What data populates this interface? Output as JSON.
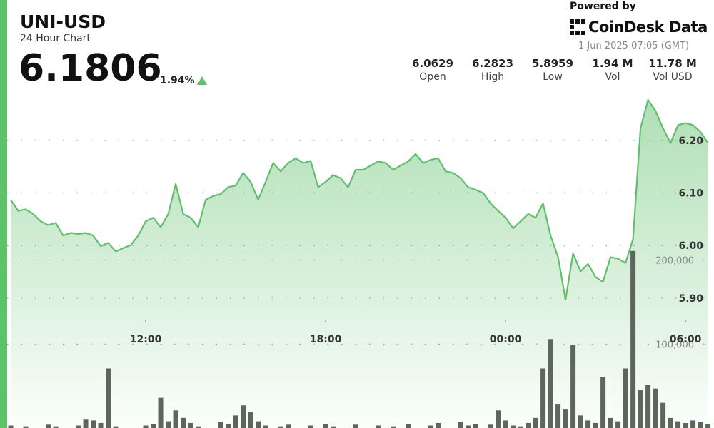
{
  "header": {
    "symbol": "UNI-USD",
    "subtitle": "24 Hour Chart",
    "price": "6.1806",
    "change": "1.94%",
    "powered_by": "Powered by",
    "brand": "CoinDesk Data",
    "timestamp": "1 Jun 2025 07:05 (GMT)",
    "stats": [
      {
        "value": "6.0629",
        "label": "Open"
      },
      {
        "value": "6.2823",
        "label": "High"
      },
      {
        "value": "5.8959",
        "label": "Low"
      },
      {
        "value": "1.94 M",
        "label": "Vol"
      },
      {
        "value": "11.78 M",
        "label": "Vol USD"
      }
    ]
  },
  "chart_data": {
    "type": "line",
    "x": [
      7.5,
      7.75,
      8,
      8.25,
      8.5,
      8.75,
      9,
      9.25,
      9.5,
      9.75,
      10,
      10.25,
      10.5,
      10.75,
      11,
      11.25,
      11.5,
      11.75,
      12,
      12.25,
      12.5,
      12.75,
      13,
      13.25,
      13.5,
      13.75,
      14,
      14.25,
      14.5,
      14.75,
      15,
      15.25,
      15.5,
      15.75,
      16,
      16.25,
      16.5,
      16.75,
      17,
      17.25,
      17.5,
      17.75,
      18,
      18.25,
      18.5,
      18.75,
      19,
      19.25,
      19.5,
      19.75,
      20,
      20.25,
      20.5,
      20.75,
      21,
      21.25,
      21.5,
      21.75,
      22,
      22.25,
      22.5,
      22.75,
      23,
      23.25,
      23.5,
      23.75,
      24,
      24.25,
      24.5,
      24.75,
      25,
      25.25,
      25.5,
      25.75,
      26,
      26.25,
      26.5,
      26.75,
      27,
      27.25,
      27.5,
      27.75,
      28,
      28.25,
      28.5,
      28.75,
      29,
      29.25,
      29.5,
      29.75,
      30,
      30.25,
      30.5,
      30.75
    ],
    "series": [
      {
        "type": "line",
        "color": "#5fbf6a",
        "values": [
          6.087,
          6.066,
          6.069,
          6.06,
          6.046,
          6.039,
          6.043,
          6.019,
          6.024,
          6.022,
          6.024,
          6.019,
          5.999,
          6.005,
          5.989,
          5.995,
          6.001,
          6.019,
          6.046,
          6.053,
          6.035,
          6.06,
          6.117,
          6.06,
          6.053,
          6.035,
          6.087,
          6.094,
          6.098,
          6.111,
          6.114,
          6.138,
          6.121,
          6.087,
          6.121,
          6.157,
          6.141,
          6.157,
          6.166,
          6.157,
          6.161,
          6.111,
          6.121,
          6.134,
          6.128,
          6.111,
          6.144,
          6.144,
          6.152,
          6.16,
          6.157,
          6.144,
          6.152,
          6.16,
          6.174,
          6.157,
          6.163,
          6.166,
          6.141,
          6.138,
          6.128,
          6.111,
          6.106,
          6.1,
          6.08,
          6.066,
          6.053,
          6.033,
          6.046,
          6.06,
          6.053,
          6.08,
          6.019,
          5.978,
          5.897,
          5.985,
          5.951,
          5.965,
          5.94,
          5.931,
          5.978,
          5.975,
          5.967,
          6.012,
          6.223,
          6.277,
          6.256,
          6.223,
          6.195,
          6.229,
          6.233,
          6.229,
          6.216,
          6.195
        ]
      },
      {
        "type": "bar",
        "axis": "y2",
        "color": "#5d665c",
        "values": [
          3000,
          0,
          2000,
          0,
          0,
          4000,
          2000,
          0,
          0,
          3000,
          10000,
          9000,
          6000,
          71000,
          2000,
          0,
          0,
          0,
          3000,
          5000,
          36000,
          8000,
          21000,
          12000,
          6000,
          2000,
          0,
          0,
          7000,
          5000,
          15000,
          27000,
          19000,
          8000,
          3000,
          0,
          2000,
          4000,
          0,
          0,
          3000,
          0,
          5000,
          2000,
          0,
          0,
          4000,
          0,
          0,
          3000,
          0,
          2000,
          0,
          5000,
          0,
          0,
          3000,
          6000,
          0,
          0,
          7000,
          3000,
          5000,
          0,
          4000,
          21000,
          9000,
          3000,
          2000,
          6000,
          12000,
          71000,
          106000,
          28000,
          22000,
          99000,
          15000,
          9000,
          6000,
          61000,
          12000,
          8000,
          71000,
          211000,
          45000,
          51000,
          47000,
          30000,
          12000,
          8000,
          6000,
          9000,
          7000,
          5000
        ]
      }
    ],
    "xlim": [
      7.38,
      30.95
    ],
    "xticks": [
      {
        "value": 12,
        "label": "12:00"
      },
      {
        "value": 18,
        "label": "18:00"
      },
      {
        "value": 24,
        "label": "00:00"
      },
      {
        "value": 30,
        "label": "06:00"
      }
    ],
    "ylim": [
      5.653,
      6.467
    ],
    "yticks": [
      {
        "value": 5.9,
        "label": "5.90"
      },
      {
        "value": 6.0,
        "label": "6.00"
      },
      {
        "value": 6.1,
        "label": "6.10"
      },
      {
        "value": 6.2,
        "label": "6.20"
      }
    ],
    "y2lim": [
      0,
      510000
    ],
    "y2ticks": [
      {
        "value": 100000,
        "label": "100,000"
      },
      {
        "value": 200000,
        "label": "200,000"
      }
    ],
    "grid": true
  }
}
